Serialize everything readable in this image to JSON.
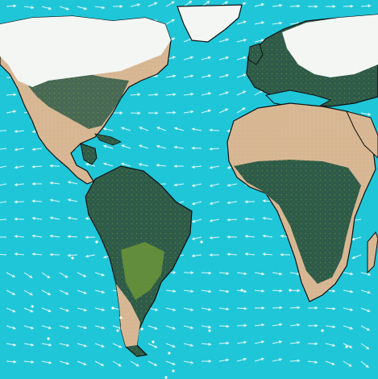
{
  "map": {
    "projection": "equirectangular",
    "layers": [
      "ocean",
      "land-cover",
      "snow-ice",
      "wind-vectors",
      "coastlines"
    ],
    "colors": {
      "ocean": "#1fc6d8",
      "desert": "#d8b894",
      "forest": "#2e5a4a",
      "grassland": "#6e9a38",
      "snow": "#f4f6f4",
      "coastline": "#0b0f10",
      "wind_arrow": "#ffffff"
    },
    "wind": {
      "arrow_icon": "arrow-icon",
      "style": "white arrows over ocean and land"
    },
    "text_labels": []
  }
}
